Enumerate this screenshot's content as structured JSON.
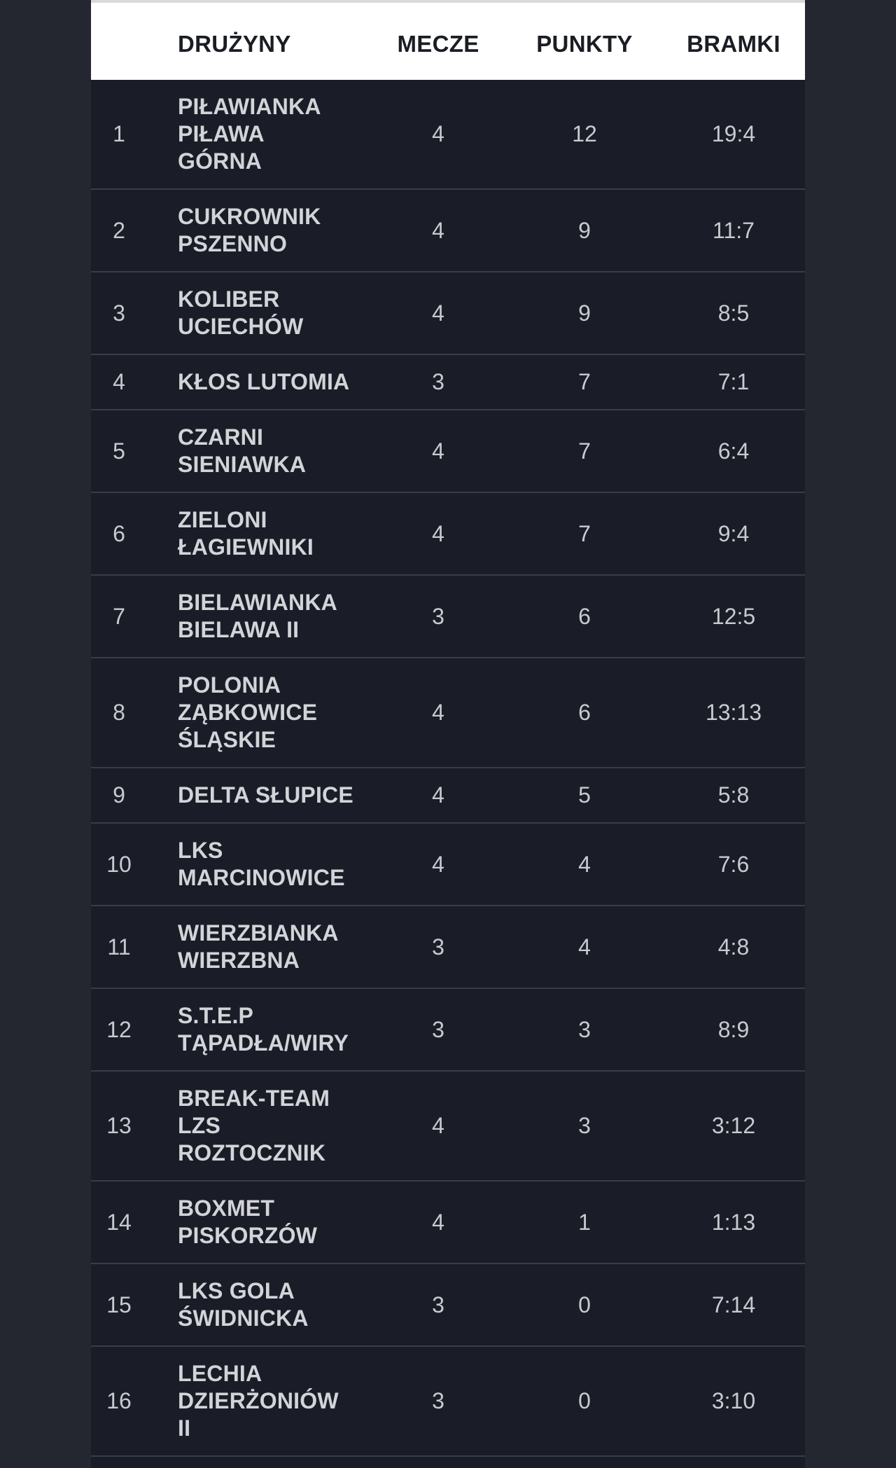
{
  "table": {
    "headers": {
      "team": "DRUŻYNY",
      "matches": "MECZE",
      "points": "PUNKTY",
      "goals": "BRAMKI"
    },
    "rows": [
      {
        "pos": "1",
        "team_lines": [
          "PIŁAWIANKA",
          "PIŁAWA",
          "GÓRNA"
        ],
        "matches": "4",
        "points": "12",
        "goals": "19:4"
      },
      {
        "pos": "2",
        "team_lines": [
          "CUKROWNIK",
          "PSZENNO"
        ],
        "matches": "4",
        "points": "9",
        "goals": "11:7"
      },
      {
        "pos": "3",
        "team_lines": [
          "KOLIBER",
          "UCIECHÓW"
        ],
        "matches": "4",
        "points": "9",
        "goals": "8:5"
      },
      {
        "pos": "4",
        "team_lines": [
          "KŁOS LUTOMIA"
        ],
        "matches": "3",
        "points": "7",
        "goals": "7:1"
      },
      {
        "pos": "5",
        "team_lines": [
          "CZARNI",
          "SIENIAWKA"
        ],
        "matches": "4",
        "points": "7",
        "goals": "6:4"
      },
      {
        "pos": "6",
        "team_lines": [
          "ZIELONI",
          "ŁAGIEWNIKI"
        ],
        "matches": "4",
        "points": "7",
        "goals": "9:4"
      },
      {
        "pos": "7",
        "team_lines": [
          "BIELAWIANKA",
          "BIELAWA II"
        ],
        "matches": "3",
        "points": "6",
        "goals": "12:5"
      },
      {
        "pos": "8",
        "team_lines": [
          "POLONIA",
          "ZĄBKOWICE",
          "ŚLĄSKIE"
        ],
        "matches": "4",
        "points": "6",
        "goals": "13:13"
      },
      {
        "pos": "9",
        "team_lines": [
          "DELTA SŁUPICE"
        ],
        "matches": "4",
        "points": "5",
        "goals": "5:8"
      },
      {
        "pos": "10",
        "team_lines": [
          "LKS",
          "MARCINOWICE"
        ],
        "matches": "4",
        "points": "4",
        "goals": "7:6"
      },
      {
        "pos": "11",
        "team_lines": [
          "WIERZBIANKA",
          "WIERZBNA"
        ],
        "matches": "3",
        "points": "4",
        "goals": "4:8"
      },
      {
        "pos": "12",
        "team_lines": [
          "S.T.E.P",
          "TĄPADŁA/WIRY"
        ],
        "matches": "3",
        "points": "3",
        "goals": "8:9"
      },
      {
        "pos": "13",
        "team_lines": [
          "BREAK-TEAM",
          "LZS",
          "ROZTOCZNIK"
        ],
        "matches": "4",
        "points": "3",
        "goals": "3:12"
      },
      {
        "pos": "14",
        "team_lines": [
          "BOXMET",
          "PISKORZÓW"
        ],
        "matches": "4",
        "points": "1",
        "goals": "1:13"
      },
      {
        "pos": "15",
        "team_lines": [
          "LKS GOLA",
          "ŚWIDNICKA"
        ],
        "matches": "3",
        "points": "0",
        "goals": "7:14"
      },
      {
        "pos": "16",
        "team_lines": [
          "LECHIA",
          "DZIERŻONIÓW",
          "II"
        ],
        "matches": "3",
        "points": "0",
        "goals": "3:10"
      }
    ]
  }
}
